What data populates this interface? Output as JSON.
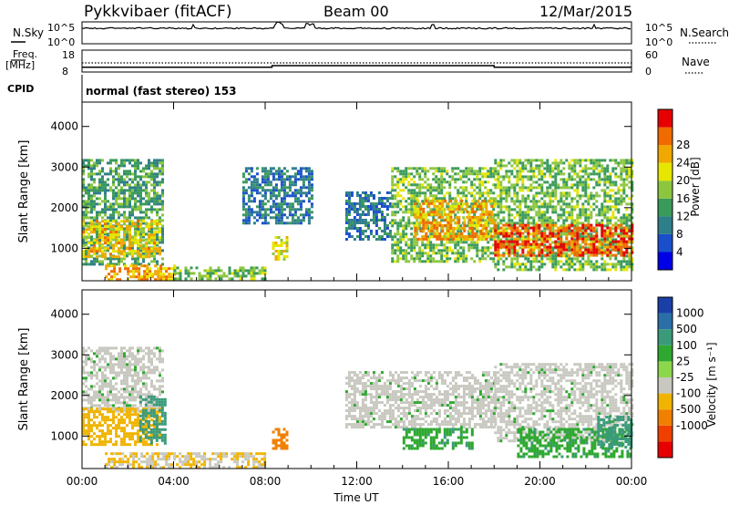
{
  "header": {
    "radar": "Pykkvibaer (fitACF)",
    "beam": "Beam 00",
    "date": "12/Mar/2015"
  },
  "nsky": {
    "label": "N.Sky",
    "ticks_left": [
      "10^5",
      "10^0"
    ],
    "ticks_right": [
      "10^5",
      "10^0"
    ],
    "right_label": "N.Search"
  },
  "freq": {
    "label_top": "Freq.",
    "label_unit": "[MHz]",
    "ticks_left": [
      "18",
      "8"
    ],
    "ticks_right": [
      "60",
      "0"
    ],
    "right_label": "Nave",
    "freq_steps": [
      {
        "t0": 0.0,
        "t1": 8.3,
        "mhz": 10.2
      },
      {
        "t0": 8.3,
        "t1": 18.0,
        "mhz": 10.9
      },
      {
        "t0": 18.0,
        "t1": 24.0,
        "mhz": 10.2
      }
    ]
  },
  "cpid": {
    "label": "CPID",
    "text": "normal (fast stereo) 153"
  },
  "chart_data": [
    {
      "type": "heatmap",
      "title": "Power",
      "ylabel": "Slant Range [km]",
      "xlabel": "Time UT",
      "x_ticks": [
        "00:00",
        "04:00",
        "08:00",
        "12:00",
        "16:00",
        "20:00",
        "00:00"
      ],
      "x_range_hours": [
        0,
        24
      ],
      "ylim": [
        200,
        4600
      ],
      "y_ticks": [
        1000,
        2000,
        3000,
        4000
      ],
      "colorbar": {
        "label": "Power [dB]",
        "tick_labels": [
          "4",
          "8",
          "12",
          "16",
          "20",
          "24",
          "28"
        ],
        "range": [
          0,
          30
        ],
        "colors": [
          "#0000e6",
          "#1a4fcc",
          "#2f7f8a",
          "#3a9a5a",
          "#8cc63f",
          "#e6e600",
          "#f0a800",
          "#f06a00",
          "#e60000"
        ]
      },
      "echo_regions": [
        {
          "t0": 0.0,
          "t1": 3.5,
          "r0": 600,
          "r1": 3200,
          "level": 12
        },
        {
          "t0": 0.0,
          "t1": 3.4,
          "r0": 800,
          "r1": 1700,
          "level": 20
        },
        {
          "t0": 1.0,
          "t1": 4.0,
          "r0": 250,
          "r1": 600,
          "level": 22
        },
        {
          "t0": 4.0,
          "t1": 8.0,
          "r0": 250,
          "r1": 550,
          "level": 14
        },
        {
          "t0": 8.3,
          "t1": 9.0,
          "r0": 700,
          "r1": 1300,
          "level": 18
        },
        {
          "t0": 7.0,
          "t1": 10.0,
          "r0": 1600,
          "r1": 3000,
          "level": 8
        },
        {
          "t0": 11.5,
          "t1": 13.5,
          "r0": 1200,
          "r1": 2400,
          "level": 8
        },
        {
          "t0": 13.5,
          "t1": 18.0,
          "r0": 700,
          "r1": 3000,
          "level": 14
        },
        {
          "t0": 14.5,
          "t1": 18.0,
          "r0": 1200,
          "r1": 2200,
          "level": 22
        },
        {
          "t0": 18.0,
          "t1": 24.0,
          "r0": 500,
          "r1": 3200,
          "level": 14
        },
        {
          "t0": 18.0,
          "t1": 24.0,
          "r0": 800,
          "r1": 1600,
          "level": 26
        }
      ]
    },
    {
      "type": "heatmap",
      "title": "Velocity",
      "ylabel": "Slant Range [km]",
      "xlabel": "Time UT",
      "x_ticks": [
        "00:00",
        "04:00",
        "08:00",
        "12:00",
        "16:00",
        "20:00",
        "00:00"
      ],
      "x_range_hours": [
        0,
        24
      ],
      "ylim": [
        200,
        4600
      ],
      "y_ticks": [
        1000,
        2000,
        3000,
        4000
      ],
      "colorbar": {
        "label": "Velocity [m s⁻¹]",
        "tick_labels": [
          "1000",
          "500",
          "100",
          "25",
          "-25",
          "-100",
          "-500",
          "-1000"
        ],
        "colors": [
          "#1a3fa6",
          "#2a6fa8",
          "#3a9a7a",
          "#2ea82e",
          "#8cd84c",
          "#c8c8c0",
          "#f0b400",
          "#f08000",
          "#f04000",
          "#e60000"
        ]
      },
      "echo_regions": [
        {
          "t0": 0.0,
          "t1": 3.5,
          "r0": 1600,
          "r1": 3200,
          "velocity": 0
        },
        {
          "t0": 0.0,
          "t1": 3.4,
          "r0": 800,
          "r1": 1700,
          "velocity": -200
        },
        {
          "t0": 2.5,
          "t1": 3.6,
          "r0": 800,
          "r1": 2000,
          "velocity": 400
        },
        {
          "t0": 1.0,
          "t1": 8.0,
          "r0": 250,
          "r1": 600,
          "velocity": -100
        },
        {
          "t0": 8.3,
          "t1": 9.0,
          "r0": 700,
          "r1": 1200,
          "velocity": -600
        },
        {
          "t0": 11.5,
          "t1": 18.0,
          "r0": 1200,
          "r1": 2600,
          "velocity": 0
        },
        {
          "t0": 14.0,
          "t1": 17.0,
          "r0": 700,
          "r1": 1200,
          "velocity": 80
        },
        {
          "t0": 18.0,
          "t1": 24.0,
          "r0": 900,
          "r1": 2800,
          "velocity": 0
        },
        {
          "t0": 19.0,
          "t1": 24.0,
          "r0": 500,
          "r1": 1200,
          "velocity": 80
        },
        {
          "t0": 22.5,
          "t1": 24.0,
          "r0": 700,
          "r1": 1500,
          "velocity": 300
        }
      ]
    }
  ]
}
